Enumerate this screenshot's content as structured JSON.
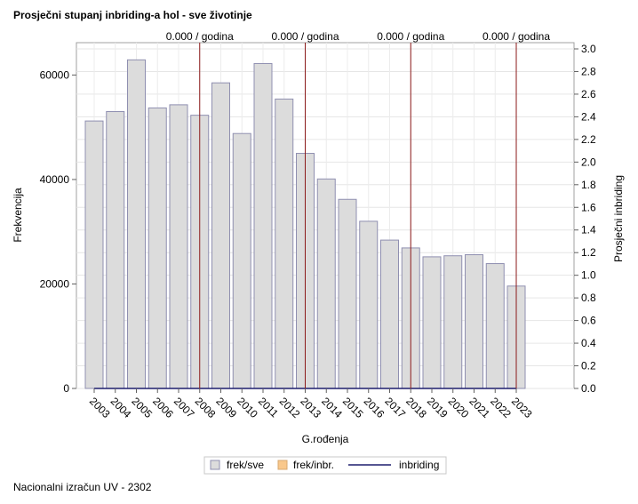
{
  "title": "Prosječni stupanj inbriding-a hol - sve životinje",
  "footnote": "Nacionalni izračun UV - 2302",
  "chart_data": {
    "type": "bar",
    "categories": [
      "2003",
      "2004",
      "2005",
      "2006",
      "2007",
      "2008",
      "2009",
      "2010",
      "2011",
      "2012",
      "2013",
      "2014",
      "2015",
      "2016",
      "2017",
      "2018",
      "2019",
      "2020",
      "2021",
      "2022",
      "2023"
    ],
    "series": [
      {
        "name": "frek/sve",
        "type": "bar",
        "axis": "left",
        "color": "#dcdcdc",
        "stroke": "#8f8fb0",
        "values": [
          51200,
          53000,
          62900,
          53700,
          54300,
          52300,
          58500,
          48800,
          62200,
          55400,
          45000,
          40100,
          36200,
          32000,
          28400,
          26900,
          25200,
          25400,
          25600,
          23900,
          19600
        ]
      },
      {
        "name": "frek/inbr.",
        "type": "bar",
        "axis": "left",
        "color": "#f9c88c",
        "values": [
          0,
          0,
          0,
          0,
          0,
          0,
          0,
          0,
          0,
          0,
          0,
          0,
          0,
          0,
          0,
          0,
          0,
          0,
          0,
          0,
          0
        ]
      },
      {
        "name": "inbriding",
        "type": "line",
        "axis": "right",
        "color": "#1f1f6e",
        "values": [
          0,
          0,
          0,
          0,
          0,
          0,
          0,
          0,
          0,
          0,
          0,
          0,
          0,
          0,
          0,
          0,
          0,
          0,
          0,
          0,
          0
        ]
      }
    ],
    "xlabel": "G.rođenja",
    "ylabel": "Frekvencija",
    "y2label": "Prosječni inbriding",
    "ylim": [
      0,
      65000
    ],
    "yticks": [
      0,
      20000,
      40000,
      60000
    ],
    "y2lim": [
      0,
      3.0
    ],
    "y2ticks": [
      "0.0",
      "0.2",
      "0.4",
      "0.6",
      "0.8",
      "1.0",
      "1.2",
      "1.4",
      "1.6",
      "1.8",
      "2.0",
      "2.2",
      "2.4",
      "2.6",
      "2.8",
      "3.0"
    ],
    "reference_lines": [
      {
        "x": "2008",
        "label": "0.000 / godina",
        "color": "#8b1a1a"
      },
      {
        "x": "2013",
        "label": "0.000 / godina",
        "color": "#8b1a1a"
      },
      {
        "x": "2018",
        "label": "0.000 / godina",
        "color": "#8b1a1a"
      },
      {
        "x": "2023",
        "label": "0.000 / godina",
        "color": "#8b1a1a"
      }
    ],
    "grid": true,
    "legend_position": "bottom"
  }
}
